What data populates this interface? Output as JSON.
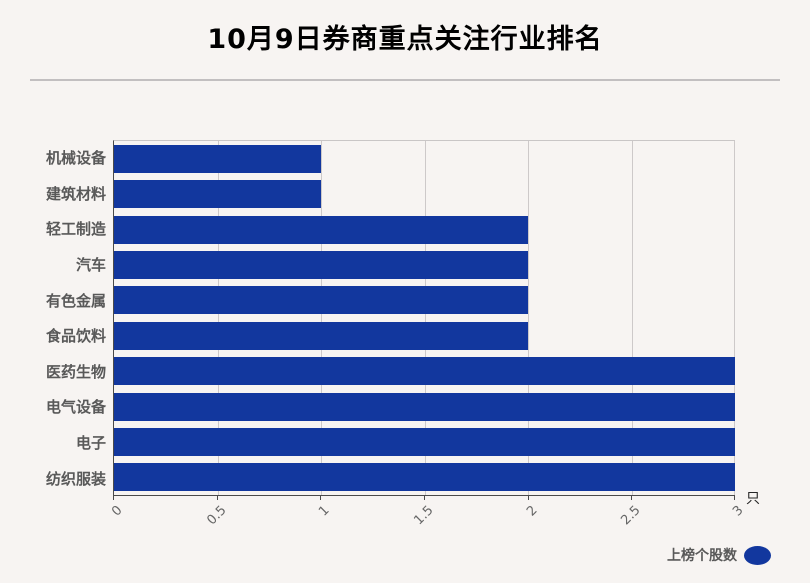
{
  "header": {
    "title": "10月9日券商重点关注行业排名"
  },
  "chart_data": {
    "type": "bar",
    "orientation": "horizontal",
    "title": "10月9日券商重点关注行业排名",
    "categories": [
      "机械设备",
      "建筑材料",
      "轻工制造",
      "汽车",
      "有色金属",
      "食品饮料",
      "医药生物",
      "电气设备",
      "电子",
      "纺织服装"
    ],
    "values": [
      1,
      1,
      2,
      2,
      2,
      2,
      3,
      3,
      3,
      3
    ],
    "xlabel": "只",
    "xlim": [
      0,
      3
    ],
    "xticks": [
      0,
      0.5,
      1,
      1.5,
      2,
      2.5,
      3
    ],
    "xtick_labels": [
      "0",
      "0.5",
      "1",
      "1.5",
      "2",
      "2.5",
      "3"
    ],
    "grid": "vertical gridlines at 0.5 intervals",
    "tick_label_rotation": 45,
    "legend": {
      "label": "上榜个股数",
      "position": "bottom-right",
      "marker": "ellipse"
    },
    "bar_color": "#12379E"
  },
  "colors": {
    "background": "#F7F4F2",
    "bar": "#12379E",
    "gridline": "#CDC9C9",
    "axis": "#4A4A4A",
    "title_text": "#000000",
    "category_text": "#595959",
    "tick_text": "#666666",
    "divider": "#C2BFC0"
  }
}
